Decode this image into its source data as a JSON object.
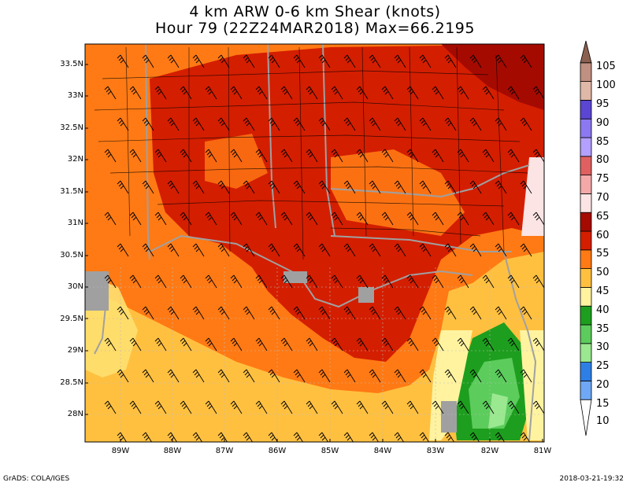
{
  "title": {
    "line1": "4 km ARW 0-6 km Shear (knots)",
    "line2": "Hour 79 (22Z24MAR2018) Max=66.2195"
  },
  "lat_labels": [
    "33.5N",
    "33N",
    "32.5N",
    "32N",
    "31.5N",
    "31N",
    "30.5N",
    "30N",
    "29.5N",
    "29N",
    "28.5N",
    "28N"
  ],
  "lon_labels": [
    "89W",
    "88W",
    "87W",
    "86W",
    "85W",
    "84W",
    "83W",
    "82W",
    "81W"
  ],
  "colorbar": {
    "levels": [
      "105",
      "100",
      "95",
      "90",
      "85",
      "80",
      "75",
      "70",
      "65",
      "60",
      "55",
      "50",
      "45",
      "40",
      "35",
      "30",
      "25",
      "20",
      "15",
      "10"
    ],
    "colors": {
      "10": "#a3c6ff",
      "15": "#6fa8f5",
      "20": "#2d7fe6",
      "25": "#9ae890",
      "30": "#5ccc5c",
      "35": "#1e9e1e",
      "40": "#fff3a0",
      "45": "#ffc040",
      "50": "#ff7a14",
      "55": "#d41e00",
      "60": "#a50a00",
      "65": "#fce4e4",
      "70": "#f5a8a8",
      "75": "#e06060",
      "80": "#b4a0ff",
      "85": "#8c78f0",
      "90": "#5a46d2",
      "95": "#e0b8a8",
      "100": "#c09080",
      "105": "#8c6050"
    }
  },
  "footer": {
    "left": "GrADS: COLA/IGES",
    "right": "2018-03-21-19:32"
  }
}
